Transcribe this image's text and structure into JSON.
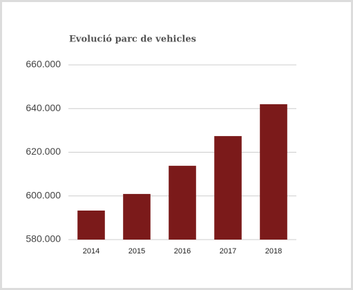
{
  "chart_data": {
    "type": "bar",
    "title": "Evolució parc de vehicles",
    "categories": [
      "2014",
      "2015",
      "2016",
      "2017",
      "2018"
    ],
    "values": [
      593300,
      600900,
      613800,
      627400,
      642000
    ],
    "color": "#7b1a1a",
    "ylim": [
      580000,
      660000
    ],
    "yticks": [
      {
        "value": 580000,
        "label": "580.000"
      },
      {
        "value": 600000,
        "label": "600.000"
      },
      {
        "value": 620000,
        "label": "620.000"
      },
      {
        "value": 640000,
        "label": "640.000"
      },
      {
        "value": 660000,
        "label": "660.000"
      }
    ],
    "grid": true
  }
}
